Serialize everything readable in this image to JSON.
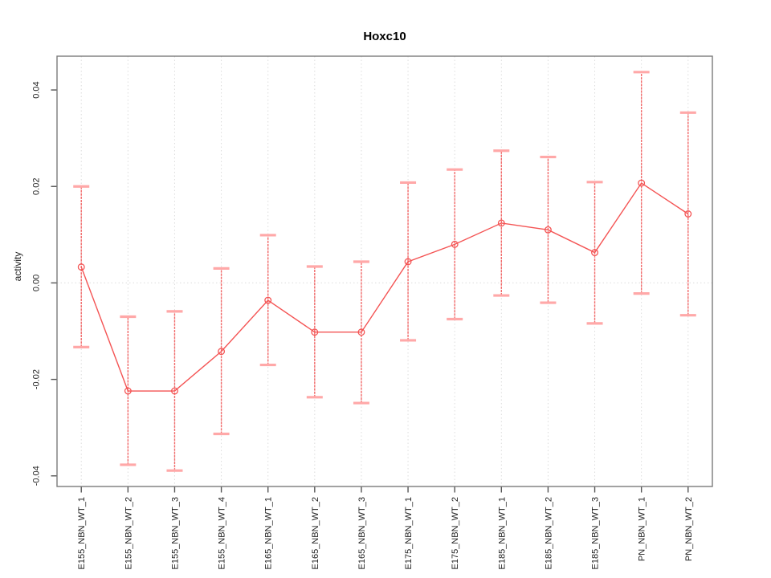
{
  "figure": {
    "title": "Hoxc10",
    "background": "#ffffff"
  },
  "chart_data": {
    "type": "line",
    "title": "Hoxc10",
    "xlabel": "",
    "ylabel": "activity",
    "legend": "none",
    "categories": [
      "E155_NBN_WT_1",
      "E155_NBN_WT_2",
      "E155_NBN_WT_3",
      "E155_NBN_WT_4",
      "E165_NBN_WT_1",
      "E165_NBN_WT_2",
      "E165_NBN_WT_3",
      "E175_NBN_WT_1",
      "E175_NBN_WT_2",
      "E185_NBN_WT_1",
      "E185_NBN_WT_2",
      "E185_NBN_WT_3",
      "PN_NBN_WT_1",
      "PN_NBN_WT_2"
    ],
    "series": [
      {
        "name": "activity",
        "marker": "open-circle",
        "values": [
          0.0033,
          -0.0224,
          -0.0224,
          -0.0142,
          -0.0036,
          -0.0102,
          -0.0102,
          0.0044,
          0.008,
          0.0124,
          0.011,
          0.0063,
          0.0207,
          0.0143
        ],
        "error_low": [
          -0.0133,
          -0.0377,
          -0.0389,
          -0.0313,
          -0.017,
          -0.0237,
          -0.0249,
          -0.0119,
          -0.0075,
          -0.0026,
          -0.0041,
          -0.0084,
          -0.0022,
          -0.0067
        ],
        "error_high": [
          0.02,
          -0.007,
          -0.0059,
          0.003,
          0.0099,
          0.0034,
          0.0044,
          0.0208,
          0.0235,
          0.0274,
          0.0261,
          0.0209,
          0.0437,
          0.0353
        ]
      }
    ],
    "ylim": [
      -0.0422,
      0.047
    ],
    "yticks": [
      {
        "value": -0.04,
        "label": "-0.04"
      },
      {
        "value": -0.02,
        "label": "-0.02"
      },
      {
        "value": 0.0,
        "label": "0.00"
      },
      {
        "value": 0.02,
        "label": "0.02"
      },
      {
        "value": 0.04,
        "label": "0.04"
      }
    ],
    "grid": {
      "vertical_dotted_per_category": true,
      "horizontal_dotted_at_zero": true
    },
    "colors": {
      "series": "#f45454",
      "error_stem": "#f25b5b",
      "error_cap": "#ffa8a8",
      "grid": "#dcdcdc",
      "axis_box": "#7a7a7a",
      "tick": "#555555",
      "tick_text": "#222222",
      "title_text": "#000000"
    }
  }
}
